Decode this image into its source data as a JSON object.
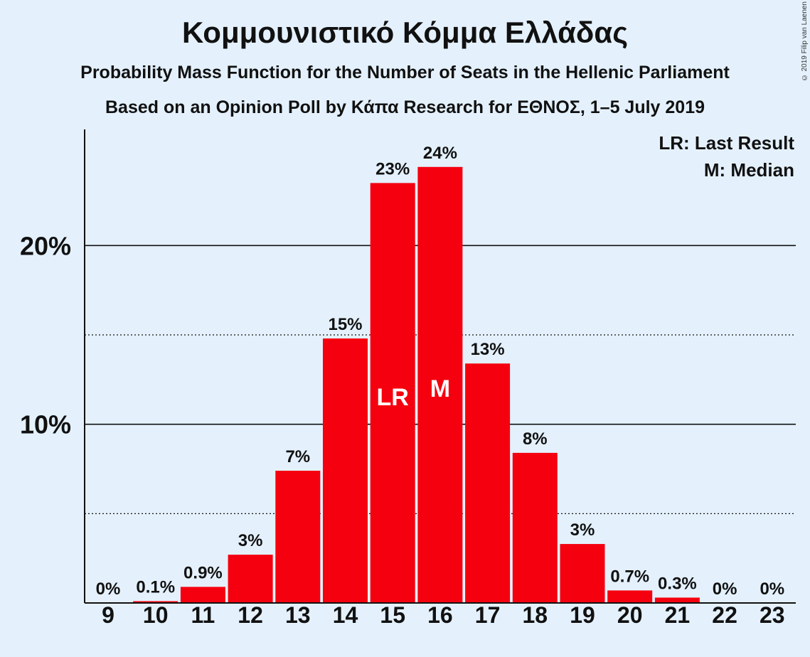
{
  "chart_data": {
    "type": "bar",
    "title": "Κομμουνιστικό Κόμμα Ελλάδας",
    "subtitle": "Probability Mass Function for the Number of Seats in the Hellenic Parliament",
    "subtitle2": "Based on an Opinion Poll by Κάπα Research for ΕΘΝΟΣ, 1–5 July 2019",
    "copyright": "© 2019 Filip van Laenen",
    "categories": [
      "9",
      "10",
      "11",
      "12",
      "13",
      "14",
      "15",
      "16",
      "17",
      "18",
      "19",
      "20",
      "21",
      "22",
      "23"
    ],
    "values": [
      0,
      0.1,
      0.9,
      2.7,
      7.4,
      14.8,
      23.5,
      24.4,
      13.4,
      8.4,
      3.3,
      0.7,
      0.3,
      0,
      0
    ],
    "data_labels": [
      "0%",
      "0.1%",
      "0.9%",
      "3%",
      "7%",
      "15%",
      "23%",
      "24%",
      "13%",
      "8%",
      "3%",
      "0.7%",
      "0.3%",
      "0%",
      "0%"
    ],
    "bar_annotations": {
      "15": "LR",
      "16": "M"
    },
    "legend": [
      "LR: Last Result",
      "M: Median"
    ],
    "legend_position": "top-right",
    "yticks": [
      {
        "value": 10,
        "label": "10%"
      },
      {
        "value": 20,
        "label": "20%"
      }
    ],
    "minor_gridlines": [
      5,
      15
    ],
    "ylim": [
      0,
      26.5
    ],
    "xlabel": "",
    "ylabel": "",
    "colors": {
      "bar": "#f5000f",
      "background": "#e4f1fd",
      "text": "#111111"
    }
  }
}
